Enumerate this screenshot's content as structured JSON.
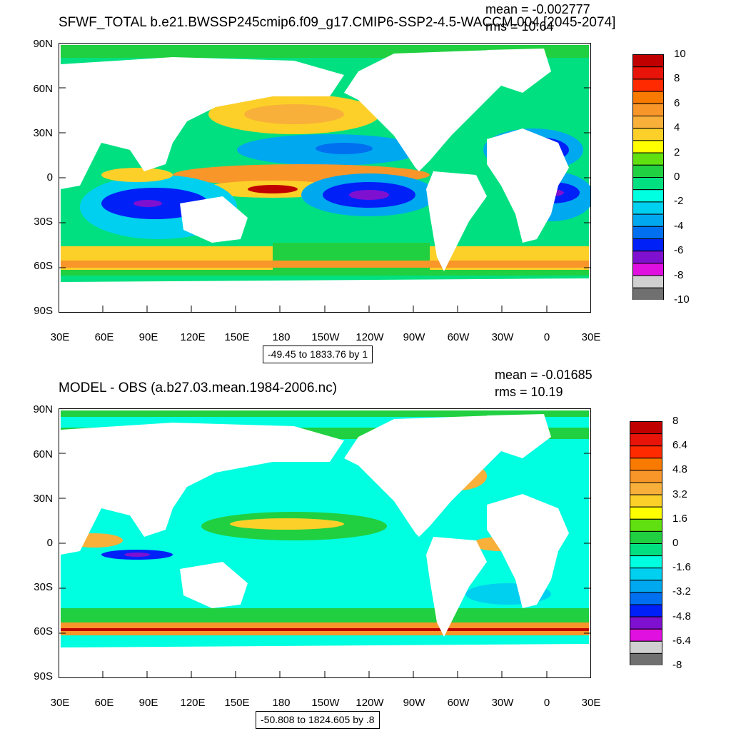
{
  "maps": [
    {
      "title": "SFWF_TOTAL b.e21.BWSSP245cmip6.f09_g17.CMIP6-SSP2-4.5-WACCM.004 [2045-2074]",
      "mean_text": "mean = -0.002777",
      "rms_text": "rms = 10.64",
      "range_text": "-49.45 to 1833.76 by 1",
      "lat_labels": [
        "90N",
        "60N",
        "30N",
        "0",
        "30S",
        "60S",
        "90S"
      ],
      "lon_labels": [
        "30E",
        "60E",
        "90E",
        "120E",
        "150E",
        "180",
        "150W",
        "120W",
        "90W",
        "60W",
        "30W",
        "0",
        "30E"
      ],
      "colorbar_labels": [
        "10",
        "8",
        "6",
        "4",
        "2",
        "0",
        "-2",
        "-4",
        "-6",
        "-8",
        "-10"
      ],
      "colorbar_colors": [
        "#c00000",
        "#e8140a",
        "#ff2a00",
        "#f87a00",
        "#f8962a",
        "#f8b03a",
        "#fcd028",
        "#ffff00",
        "#60e010",
        "#20d040",
        "#00e080",
        "#00ffe0",
        "#00d0f0",
        "#00a8f0",
        "#0070f0",
        "#0020f8",
        "#8010d0",
        "#e010e0",
        "#d0d0d0",
        "#707070"
      ]
    },
    {
      "title": "MODEL - OBS (a.b27.03.mean.1984-2006.nc)",
      "mean_text": "mean = -0.01685",
      "rms_text": "rms = 10.19",
      "range_text": "-50.808 to 1824.605 by .8",
      "lat_labels": [
        "90N",
        "60N",
        "30N",
        "0",
        "30S",
        "60S",
        "90S"
      ],
      "lon_labels": [
        "30E",
        "60E",
        "90E",
        "120E",
        "150E",
        "180",
        "150W",
        "120W",
        "90W",
        "60W",
        "30W",
        "0",
        "30E"
      ],
      "colorbar_labels": [
        "8",
        "6.4",
        "4.8",
        "3.2",
        "1.6",
        "0",
        "-1.6",
        "-3.2",
        "-4.8",
        "-6.4",
        "-8"
      ],
      "colorbar_colors": [
        "#c00000",
        "#e8140a",
        "#ff2a00",
        "#f87a00",
        "#f8962a",
        "#f8b03a",
        "#fcd028",
        "#ffff00",
        "#60e010",
        "#20d040",
        "#00e080",
        "#00ffe0",
        "#00d0f0",
        "#00a8f0",
        "#0070f0",
        "#0020f8",
        "#8010d0",
        "#e010e0",
        "#d0d0d0",
        "#707070"
      ]
    }
  ]
}
